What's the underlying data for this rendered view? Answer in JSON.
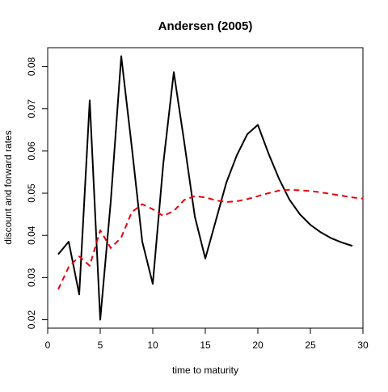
{
  "chart_data": {
    "type": "line",
    "title": "Andersen (2005)",
    "xlabel": "time to maturity",
    "ylabel": "discount and forward rates",
    "xlim": [
      0,
      30
    ],
    "ylim": [
      0.018,
      0.0845
    ],
    "x_ticks": [
      0,
      5,
      10,
      15,
      20,
      25,
      30
    ],
    "y_ticks": [
      0.02,
      0.03,
      0.04,
      0.05,
      0.06,
      0.07,
      0.08
    ],
    "x_tick_labels": [
      "0",
      "5",
      "10",
      "15",
      "20",
      "25",
      "30"
    ],
    "y_tick_labels": [
      "0.02",
      "0.03",
      "0.04",
      "0.05",
      "0.06",
      "0.07",
      "0.08"
    ],
    "grid": false,
    "series": [
      {
        "style": "solid",
        "color": "#000000",
        "points": [
          [
            1,
            0.0355
          ],
          [
            2,
            0.0385
          ],
          [
            3,
            0.026
          ],
          [
            4,
            0.072
          ],
          [
            5,
            0.02
          ],
          [
            6,
            0.048
          ],
          [
            7,
            0.0825
          ],
          [
            8,
            0.061
          ],
          [
            9,
            0.0385
          ],
          [
            10,
            0.0285
          ],
          [
            11,
            0.057
          ],
          [
            12,
            0.0787
          ],
          [
            13,
            0.062
          ],
          [
            14,
            0.0445
          ],
          [
            15,
            0.0345
          ],
          [
            16,
            0.0435
          ],
          [
            17,
            0.0525
          ],
          [
            18,
            0.059
          ],
          [
            19,
            0.064
          ],
          [
            20,
            0.0662
          ],
          [
            21,
            0.0595
          ],
          [
            22,
            0.0535
          ],
          [
            23,
            0.0485
          ],
          [
            24,
            0.045
          ],
          [
            25,
            0.0425
          ],
          [
            26,
            0.0407
          ],
          [
            27,
            0.0393
          ],
          [
            28,
            0.0383
          ],
          [
            29,
            0.0375
          ]
        ]
      },
      {
        "style": "dashed",
        "color": "#e8000b",
        "points": [
          [
            1,
            0.0272
          ],
          [
            2,
            0.0325
          ],
          [
            3,
            0.035
          ],
          [
            4,
            0.0328
          ],
          [
            5,
            0.0412
          ],
          [
            6,
            0.037
          ],
          [
            7,
            0.0395
          ],
          [
            8,
            0.0455
          ],
          [
            9,
            0.0474
          ],
          [
            10,
            0.0462
          ],
          [
            11,
            0.0446
          ],
          [
            12,
            0.0458
          ],
          [
            13,
            0.0484
          ],
          [
            14,
            0.0493
          ],
          [
            15,
            0.049
          ],
          [
            16,
            0.0483
          ],
          [
            17,
            0.0479
          ],
          [
            18,
            0.0481
          ],
          [
            19,
            0.0486
          ],
          [
            20,
            0.0493
          ],
          [
            21,
            0.05
          ],
          [
            22,
            0.0506
          ],
          [
            23,
            0.0508
          ],
          [
            24,
            0.0507
          ],
          [
            25,
            0.0505
          ],
          [
            26,
            0.0502
          ],
          [
            27,
            0.0498
          ],
          [
            28,
            0.0494
          ],
          [
            29,
            0.049
          ],
          [
            30,
            0.0487
          ]
        ]
      }
    ]
  }
}
